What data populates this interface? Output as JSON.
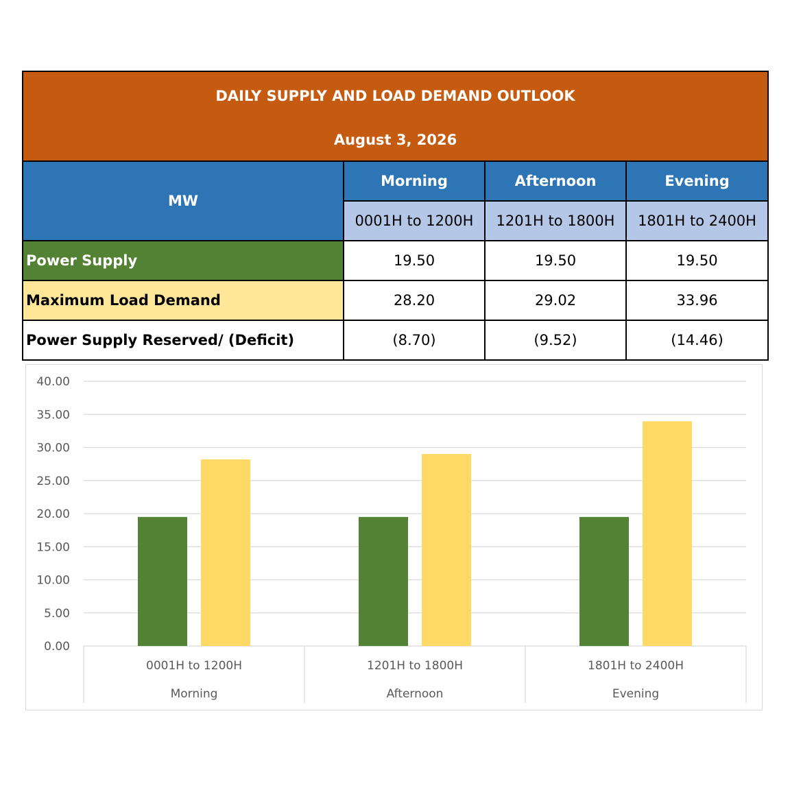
{
  "table": {
    "title": "DAILY SUPPLY AND LOAD DEMAND OUTLOOK",
    "date": "August 3, 2026",
    "unit_label": "MW",
    "periods": [
      {
        "name": "Morning",
        "range": "0001H to 1200H"
      },
      {
        "name": "Afternoon",
        "range": "1201H to 1800H"
      },
      {
        "name": "Evening",
        "range": "1801H to 2400H"
      }
    ],
    "rows": [
      {
        "label": "Power Supply",
        "values": [
          "19.50",
          "19.50",
          "19.50"
        ]
      },
      {
        "label": "Maximum Load Demand",
        "values": [
          "28.20",
          "29.02",
          "33.96"
        ]
      },
      {
        "label": "Power Supply Reserved/ (Deficit)",
        "values": [
          "(8.70)",
          "(9.52)",
          "(14.46)"
        ]
      }
    ]
  },
  "chart_data": {
    "type": "bar",
    "categories": [
      "0001H to 1200H",
      "1201H to 1800H",
      "1801H to 2400H"
    ],
    "category_groups": [
      "Morning",
      "Afternoon",
      "Evening"
    ],
    "series": [
      {
        "values": [
          19.5,
          19.5,
          19.5
        ],
        "color": "#548235"
      },
      {
        "values": [
          28.2,
          29.02,
          33.96
        ],
        "color": "#ffd966"
      }
    ],
    "ylim": [
      0,
      40
    ],
    "yticks": [
      "0.00",
      "5.00",
      "10.00",
      "15.00",
      "20.00",
      "25.00",
      "30.00",
      "35.00",
      "40.00"
    ],
    "grid": true,
    "legend": "none"
  }
}
